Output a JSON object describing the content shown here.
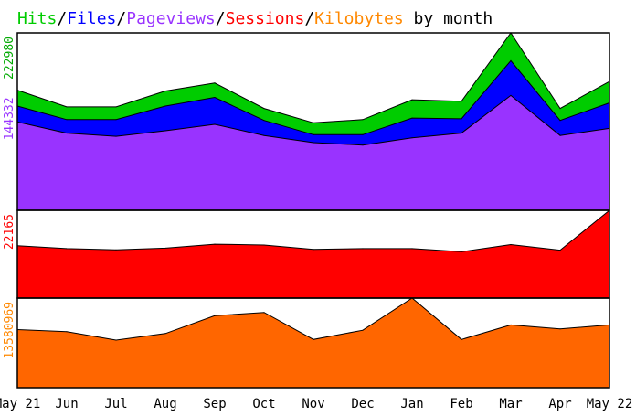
{
  "chart_data": [
    {
      "type": "area",
      "panel": "top",
      "title": {
        "parts": [
          {
            "text": "Hits",
            "color": "#00cc00"
          },
          {
            "text": "/",
            "color": "#000000"
          },
          {
            "text": "Files",
            "color": "#0000ff"
          },
          {
            "text": "/",
            "color": "#000000"
          },
          {
            "text": "Pageviews",
            "color": "#9933ff"
          },
          {
            "text": "/",
            "color": "#000000"
          },
          {
            "text": "Sessions",
            "color": "#ff0000"
          },
          {
            "text": "/",
            "color": "#000000"
          },
          {
            "text": "Kilobytes",
            "color": "#ff8800"
          },
          {
            "text": " by month",
            "color": "#000000"
          }
        ]
      },
      "ylabel": {
        "text": "222980",
        "color": "#00aa00"
      },
      "ylabel2": {
        "text": "144332",
        "color": "#9933ff"
      },
      "ylim": [
        0,
        222980
      ],
      "categories": [
        "May 21",
        "Jun",
        "Jul",
        "Aug",
        "Sep",
        "Oct",
        "Nov",
        "Dec",
        "Jan",
        "Feb",
        "Mar",
        "Apr",
        "May 22"
      ],
      "series": [
        {
          "name": "Hits",
          "color": "#00cc00",
          "values": [
            151000,
            130000,
            130000,
            150000,
            160000,
            128000,
            110000,
            114000,
            139000,
            137000,
            222980,
            128000,
            162000
          ]
        },
        {
          "name": "Files",
          "color": "#0000ff",
          "values": [
            131000,
            114000,
            114000,
            131000,
            142000,
            113000,
            95000,
            95000,
            116000,
            115000,
            188000,
            113000,
            135000
          ]
        },
        {
          "name": "Pageviews",
          "color": "#9933ff",
          "values": [
            111000,
            97000,
            93000,
            100000,
            108000,
            94000,
            85000,
            82000,
            91000,
            97000,
            144332,
            94000,
            103000
          ]
        }
      ]
    },
    {
      "type": "area",
      "panel": "middle",
      "ylabel": {
        "text": "22165",
        "color": "#ff0000"
      },
      "ylim": [
        0,
        22165
      ],
      "categories": [
        "May 21",
        "Jun",
        "Jul",
        "Aug",
        "Sep",
        "Oct",
        "Nov",
        "Dec",
        "Jan",
        "Feb",
        "Mar",
        "Apr",
        "May 22"
      ],
      "series": [
        {
          "name": "Sessions",
          "color": "#ff0000",
          "values": [
            13200,
            12500,
            12200,
            12600,
            13600,
            13400,
            12300,
            12500,
            12500,
            11700,
            13500,
            12100,
            22165
          ]
        }
      ]
    },
    {
      "type": "area",
      "panel": "bottom",
      "ylabel": {
        "text": "13580969",
        "color": "#ff8800"
      },
      "ylim": [
        0,
        13580969
      ],
      "categories": [
        "May 21",
        "Jun",
        "Jul",
        "Aug",
        "Sep",
        "Oct",
        "Nov",
        "Dec",
        "Jan",
        "Feb",
        "Mar",
        "Apr",
        "May 22"
      ],
      "series": [
        {
          "name": "Kilobytes",
          "color": "#ff6600",
          "values": [
            8800000,
            8500000,
            7200000,
            8200000,
            10900000,
            11400000,
            7300000,
            8700000,
            13580969,
            7300000,
            9500000,
            8900000,
            9500000
          ]
        }
      ]
    }
  ]
}
